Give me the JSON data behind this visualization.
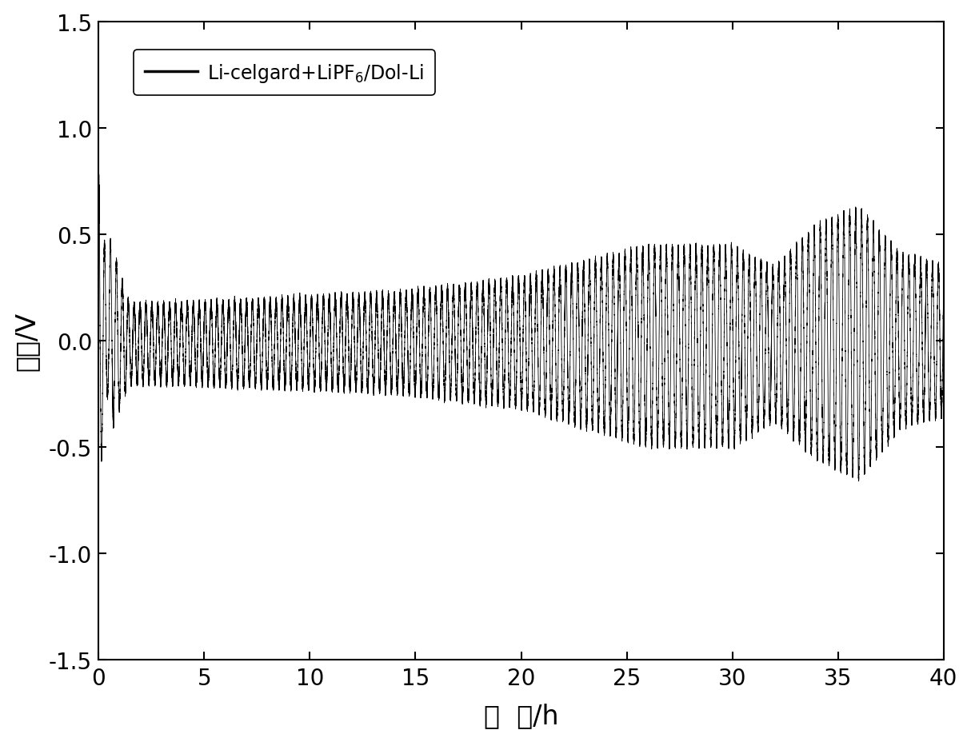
{
  "xlabel": "时  间/h",
  "ylabel": "电压/V",
  "xlim": [
    0,
    40
  ],
  "ylim": [
    -1.5,
    1.5
  ],
  "xticks": [
    0,
    5,
    10,
    15,
    20,
    25,
    30,
    35,
    40
  ],
  "yticks": [
    -1.5,
    -1.0,
    -0.5,
    0.0,
    0.5,
    1.0,
    1.5
  ],
  "line_color": "#000000",
  "line_width": 0.6,
  "background_color": "#ffffff",
  "xlabel_fontsize": 24,
  "ylabel_fontsize": 24,
  "tick_fontsize": 20,
  "legend_fontsize": 17
}
